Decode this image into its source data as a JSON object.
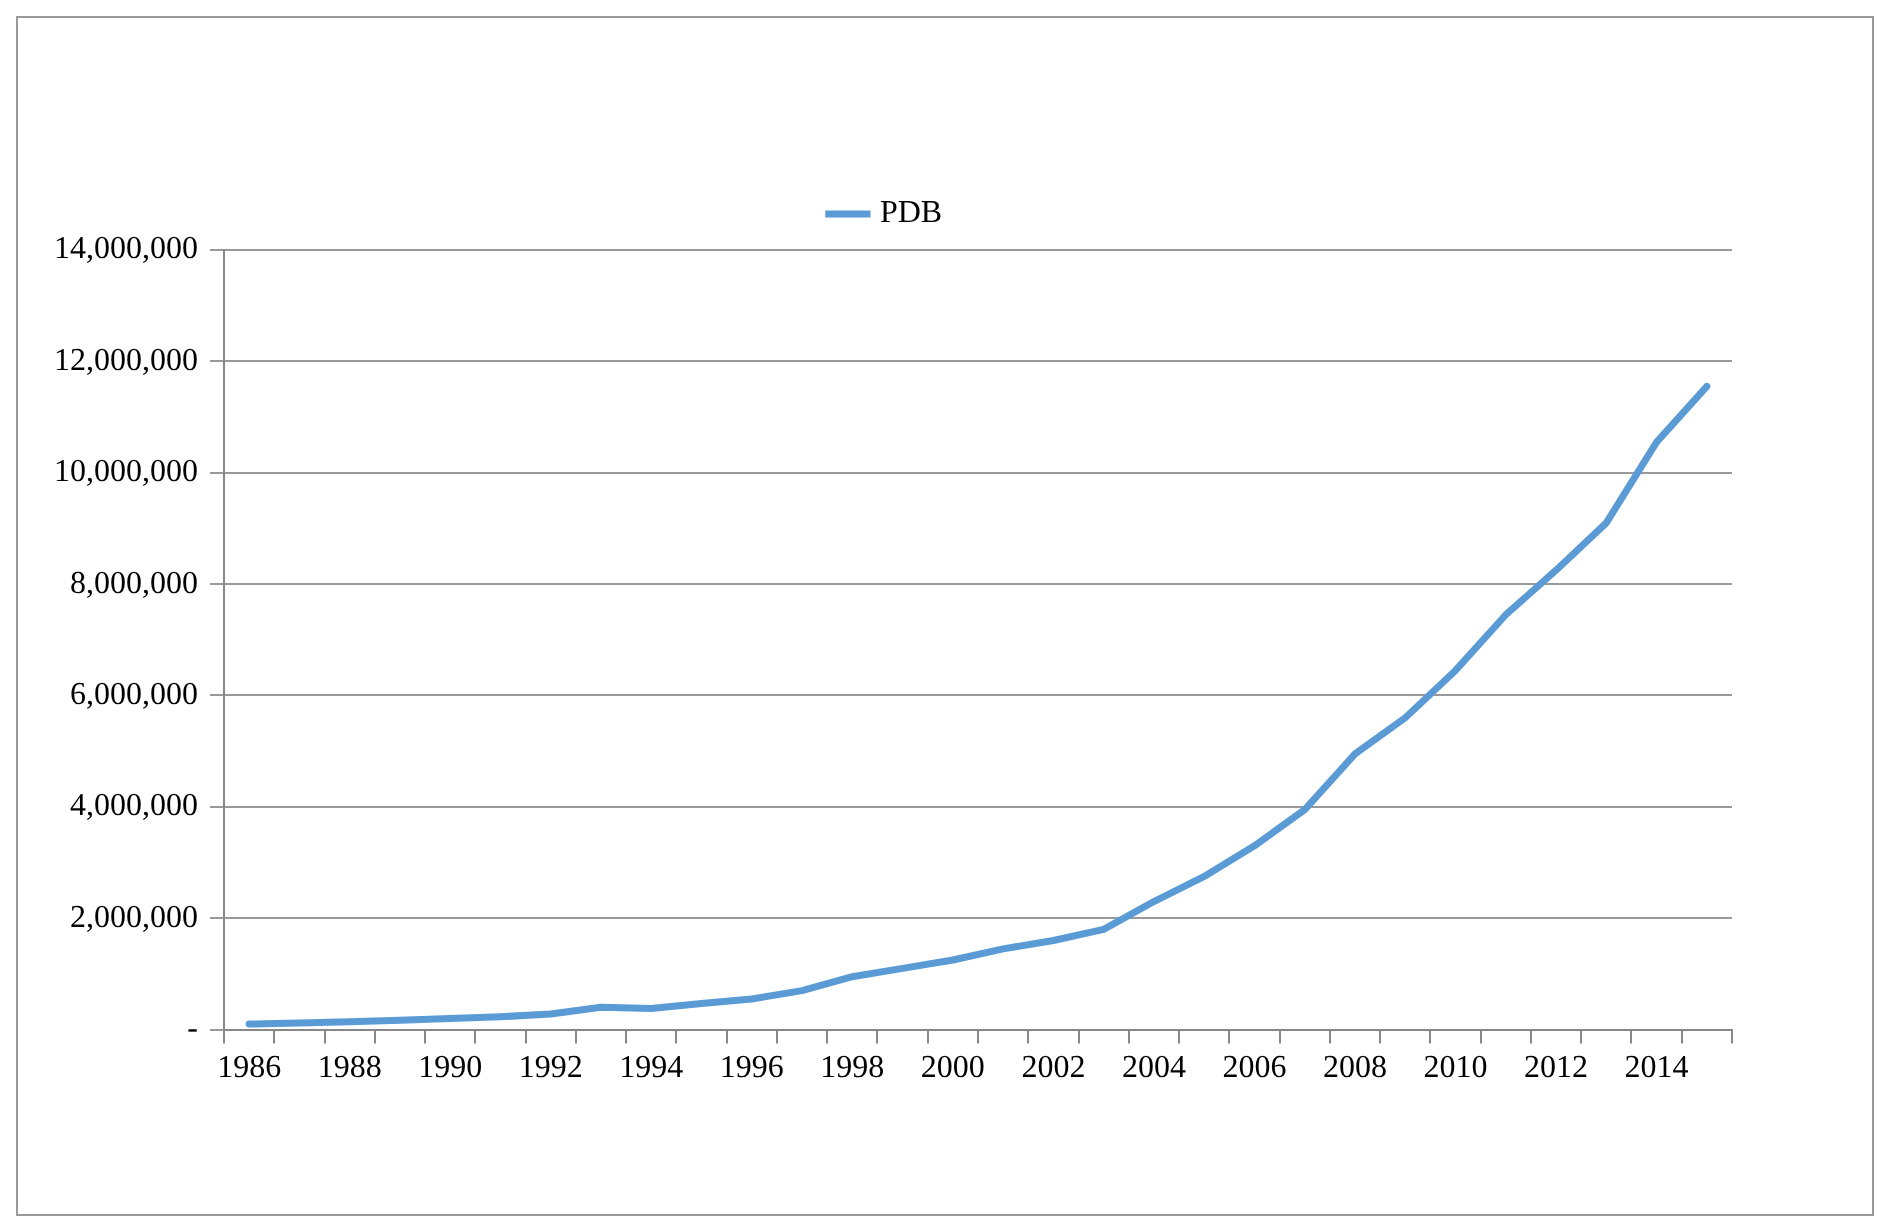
{
  "chart_data": {
    "type": "line",
    "categories": [
      "1986",
      null,
      "1988",
      null,
      "1990",
      null,
      "1992",
      null,
      "1994",
      null,
      "1996",
      null,
      "1998",
      null,
      "2000",
      null,
      "2002",
      null,
      "2004",
      null,
      "2006",
      null,
      "2008",
      null,
      "2010",
      null,
      "2012",
      null,
      "2014",
      null
    ],
    "series": [
      {
        "name": "PDB",
        "color": "#5b9bd5",
        "values": [
          100000,
          120000,
          140000,
          170000,
          200000,
          230000,
          280000,
          400000,
          380000,
          470000,
          550000,
          700000,
          950000,
          1100000,
          1250000,
          1450000,
          1600000,
          1800000,
          2300000,
          2750000,
          3300000,
          3950000,
          4950000,
          5600000,
          6450000,
          7450000,
          8250000,
          9100000,
          10550000,
          11550000
        ]
      }
    ],
    "ylim": [
      0,
      14000000
    ],
    "yticks": [
      {
        "value": 0,
        "label": "-"
      },
      {
        "value": 2000000,
        "label": "2,000,000"
      },
      {
        "value": 4000000,
        "label": "4,000,000"
      },
      {
        "value": 6000000,
        "label": "6,000,000"
      },
      {
        "value": 8000000,
        "label": "8,000,000"
      },
      {
        "value": 10000000,
        "label": "10,000,000"
      },
      {
        "value": 12000000,
        "label": "12,000,000"
      },
      {
        "value": 14000000,
        "label": "14,000,000"
      }
    ],
    "grid": "y",
    "legend": "top",
    "marker": "none",
    "line_style": "solid"
  }
}
